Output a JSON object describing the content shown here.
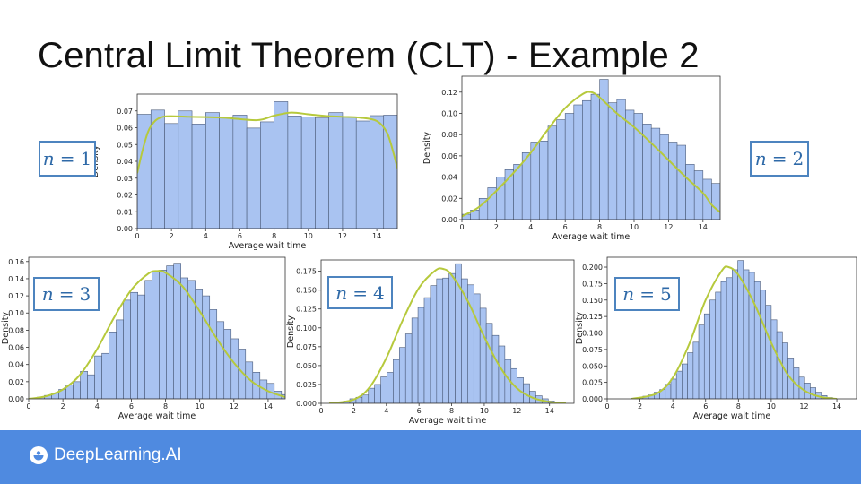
{
  "slide": {
    "title": "Central Limit Theorem (CLT) - Example 2",
    "brand": "DeepLearning.AI"
  },
  "colors": {
    "bar_fill": "#a9c3f1",
    "bar_edge": "#4a5a78",
    "curve": "#b6c93c",
    "label_border": "#4d84bf",
    "label_text": "#2f6aa8",
    "footer": "#4f8ae0"
  },
  "chart_data": [
    {
      "type": "bar",
      "n_label": "1",
      "xlabel": "Average wait time",
      "ylabel": "Density",
      "xlim": [
        0,
        15.2
      ],
      "ylim": [
        0,
        0.08
      ],
      "xticks": [
        0,
        2,
        4,
        6,
        8,
        10,
        12,
        14
      ],
      "yticks": [
        0,
        0.01,
        0.02,
        0.03,
        0.04,
        0.05,
        0.06,
        0.07
      ],
      "ytick_labels": [
        "0.00",
        "0.01",
        "0.02",
        "0.03",
        "0.04",
        "0.05",
        "0.06",
        "0.07"
      ],
      "bin_start": 0,
      "bin_width": 0.8,
      "values": [
        0.068,
        0.0705,
        0.0625,
        0.07,
        0.0622,
        0.069,
        0.066,
        0.0675,
        0.0598,
        0.0635,
        0.0755,
        0.067,
        0.0665,
        0.0658,
        0.069,
        0.0665,
        0.064,
        0.0672,
        0.0675
      ],
      "curve": [
        [
          0,
          0.033
        ],
        [
          0.4,
          0.05
        ],
        [
          0.8,
          0.061
        ],
        [
          1.5,
          0.0665
        ],
        [
          3,
          0.0665
        ],
        [
          5,
          0.066
        ],
        [
          7,
          0.0645
        ],
        [
          8,
          0.0672
        ],
        [
          9,
          0.069
        ],
        [
          10,
          0.068
        ],
        [
          11,
          0.067
        ],
        [
          12,
          0.0665
        ],
        [
          13,
          0.066
        ],
        [
          14,
          0.064
        ],
        [
          14.6,
          0.057
        ],
        [
          15,
          0.044
        ],
        [
          15.2,
          0.036
        ]
      ]
    },
    {
      "type": "bar",
      "n_label": "2",
      "xlabel": "Average wait time",
      "ylabel": "Density",
      "xlim": [
        0,
        15
      ],
      "ylim": [
        0,
        0.135
      ],
      "xticks": [
        0,
        2,
        4,
        6,
        8,
        10,
        12,
        14
      ],
      "yticks": [
        0,
        0.02,
        0.04,
        0.06,
        0.08,
        0.1,
        0.12
      ],
      "ytick_labels": [
        "0.00",
        "0.02",
        "0.04",
        "0.06",
        "0.08",
        "0.10",
        "0.12"
      ],
      "bin_start": 0,
      "bin_width": 0.5,
      "values": [
        0.005,
        0.009,
        0.02,
        0.03,
        0.04,
        0.047,
        0.052,
        0.063,
        0.073,
        0.074,
        0.088,
        0.094,
        0.1,
        0.108,
        0.112,
        0.118,
        0.132,
        0.11,
        0.113,
        0.103,
        0.1,
        0.09,
        0.086,
        0.08,
        0.073,
        0.07,
        0.052,
        0.046,
        0.038,
        0.034,
        0.009
      ],
      "curve": [
        [
          0,
          0.003
        ],
        [
          1,
          0.012
        ],
        [
          2,
          0.027
        ],
        [
          3,
          0.044
        ],
        [
          4,
          0.063
        ],
        [
          5,
          0.085
        ],
        [
          6,
          0.105
        ],
        [
          7,
          0.118
        ],
        [
          7.5,
          0.12
        ],
        [
          8,
          0.115
        ],
        [
          9,
          0.1
        ],
        [
          10,
          0.087
        ],
        [
          11,
          0.072
        ],
        [
          12,
          0.056
        ],
        [
          13,
          0.04
        ],
        [
          14,
          0.025
        ],
        [
          14.5,
          0.014
        ],
        [
          15,
          0.007
        ]
      ]
    },
    {
      "type": "bar",
      "n_label": "3",
      "xlabel": "Average wait time",
      "ylabel": "Density",
      "xlim": [
        0,
        15
      ],
      "ylim": [
        0,
        0.165
      ],
      "xticks": [
        0,
        2,
        4,
        6,
        8,
        10,
        12,
        14
      ],
      "yticks": [
        0,
        0.02,
        0.04,
        0.06,
        0.08,
        0.1,
        0.12,
        0.14,
        0.16
      ],
      "ytick_labels": [
        "0.00",
        "0.02",
        "0.04",
        "0.06",
        "0.08",
        "0.10",
        "0.12",
        "0.14",
        "0.16"
      ],
      "bin_start": 0.5,
      "bin_width": 0.42,
      "values": [
        0.002,
        0.004,
        0.007,
        0.011,
        0.016,
        0.02,
        0.032,
        0.028,
        0.05,
        0.053,
        0.078,
        0.092,
        0.115,
        0.124,
        0.121,
        0.138,
        0.148,
        0.15,
        0.155,
        0.158,
        0.141,
        0.138,
        0.128,
        0.12,
        0.104,
        0.09,
        0.081,
        0.07,
        0.058,
        0.043,
        0.031,
        0.022,
        0.018,
        0.009,
        0.005,
        0.002
      ],
      "curve": [
        [
          0,
          0.0
        ],
        [
          1,
          0.003
        ],
        [
          2,
          0.011
        ],
        [
          3,
          0.028
        ],
        [
          4,
          0.058
        ],
        [
          5,
          0.095
        ],
        [
          6,
          0.127
        ],
        [
          7,
          0.146
        ],
        [
          7.5,
          0.149
        ],
        [
          8,
          0.147
        ],
        [
          9,
          0.131
        ],
        [
          10,
          0.102
        ],
        [
          11,
          0.07
        ],
        [
          12,
          0.042
        ],
        [
          13,
          0.021
        ],
        [
          14,
          0.009
        ],
        [
          15,
          0.002
        ]
      ]
    },
    {
      "type": "bar",
      "n_label": "4",
      "xlabel": "Average wait time",
      "ylabel": "Density",
      "xlim": [
        0,
        15.5
      ],
      "ylim": [
        0,
        0.19
      ],
      "xticks": [
        0,
        2,
        4,
        6,
        8,
        10,
        12,
        14
      ],
      "yticks": [
        0,
        0.025,
        0.05,
        0.075,
        0.1,
        0.125,
        0.15,
        0.175
      ],
      "ytick_labels": [
        "0.000",
        "0.025",
        "0.050",
        "0.075",
        "0.100",
        "0.125",
        "0.150",
        "0.175"
      ],
      "bin_start": 1.0,
      "bin_width": 0.38,
      "values": [
        0.002,
        0.003,
        0.006,
        0.008,
        0.011,
        0.02,
        0.025,
        0.035,
        0.041,
        0.058,
        0.074,
        0.092,
        0.113,
        0.127,
        0.14,
        0.156,
        0.165,
        0.166,
        0.172,
        0.185,
        0.165,
        0.157,
        0.145,
        0.126,
        0.106,
        0.09,
        0.076,
        0.058,
        0.046,
        0.034,
        0.026,
        0.016,
        0.01,
        0.006,
        0.003,
        0.001
      ],
      "curve": [
        [
          0.5,
          0.0
        ],
        [
          2,
          0.005
        ],
        [
          3,
          0.022
        ],
        [
          4,
          0.06
        ],
        [
          5,
          0.11
        ],
        [
          6,
          0.153
        ],
        [
          7,
          0.176
        ],
        [
          7.5,
          0.178
        ],
        [
          8,
          0.17
        ],
        [
          9,
          0.135
        ],
        [
          10,
          0.088
        ],
        [
          11,
          0.047
        ],
        [
          12,
          0.02
        ],
        [
          13,
          0.007
        ],
        [
          14,
          0.002
        ],
        [
          15,
          0.0
        ]
      ]
    },
    {
      "type": "bar",
      "n_label": "5",
      "xlabel": "Average wait time",
      "ylabel": "Density",
      "xlim": [
        0,
        15.2
      ],
      "ylim": [
        0,
        0.215
      ],
      "xticks": [
        0,
        2,
        4,
        6,
        8,
        10,
        12,
        14
      ],
      "yticks": [
        0,
        0.025,
        0.05,
        0.075,
        0.1,
        0.125,
        0.15,
        0.175,
        0.2
      ],
      "ytick_labels": [
        "0.000",
        "0.025",
        "0.050",
        "0.075",
        "0.100",
        "0.125",
        "0.150",
        "0.175",
        "0.200"
      ],
      "bin_start": 1.5,
      "bin_width": 0.34,
      "values": [
        0.001,
        0.002,
        0.004,
        0.006,
        0.01,
        0.014,
        0.022,
        0.03,
        0.042,
        0.053,
        0.07,
        0.086,
        0.112,
        0.129,
        0.15,
        0.162,
        0.178,
        0.184,
        0.196,
        0.21,
        0.196,
        0.192,
        0.178,
        0.165,
        0.142,
        0.12,
        0.102,
        0.085,
        0.062,
        0.047,
        0.033,
        0.024,
        0.017,
        0.01,
        0.005,
        0.002
      ],
      "curve": [
        [
          1.5,
          0.0
        ],
        [
          3,
          0.008
        ],
        [
          4,
          0.032
        ],
        [
          5,
          0.083
        ],
        [
          6,
          0.15
        ],
        [
          7,
          0.195
        ],
        [
          7.4,
          0.2
        ],
        [
          8,
          0.188
        ],
        [
          9,
          0.143
        ],
        [
          10,
          0.085
        ],
        [
          11,
          0.037
        ],
        [
          12,
          0.013
        ],
        [
          13,
          0.003
        ],
        [
          14,
          0.0
        ]
      ]
    }
  ]
}
